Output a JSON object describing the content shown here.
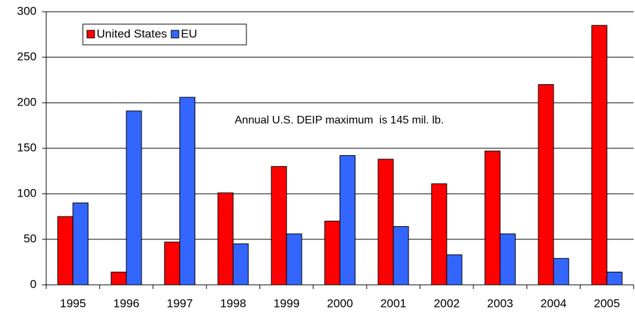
{
  "chart_data": {
    "type": "bar",
    "categories": [
      "1995",
      "1996",
      "1997",
      "1998",
      "1999",
      "2000",
      "2001",
      "2002",
      "2003",
      "2004",
      "2005"
    ],
    "series": [
      {
        "name": "United States",
        "color": "#ff0000",
        "values": [
          75,
          14,
          47,
          101,
          130,
          70,
          138,
          111,
          147,
          220,
          285
        ]
      },
      {
        "name": "EU",
        "color": "#3366ff",
        "values": [
          90,
          191,
          206,
          45,
          56,
          142,
          64,
          33,
          56,
          29,
          14
        ]
      }
    ],
    "ylim": [
      0,
      300
    ],
    "yticks": [
      0,
      50,
      100,
      150,
      200,
      250,
      300
    ],
    "grid": true,
    "annotation": "Annual U.S. DEIP maximum  is 145 mil. lb."
  }
}
